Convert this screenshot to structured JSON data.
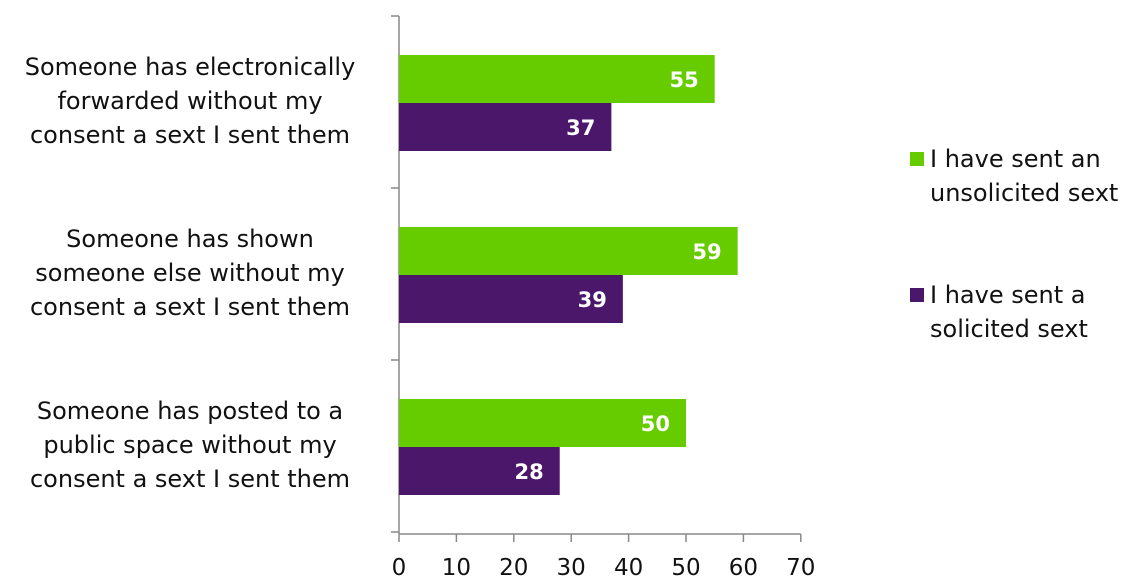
{
  "chart_data": {
    "type": "bar",
    "orientation": "horizontal",
    "categories": [
      "Someone has electronically forwarded without my consent a sext I sent them",
      "Someone has shown someone else without my consent a sext I sent them",
      "Someone has posted to a public space without my consent a sext I sent them"
    ],
    "category_lines": [
      [
        "Someone has electronically",
        "forwarded without my",
        "consent a sext I sent them"
      ],
      [
        "Someone has shown",
        "someone else without my",
        "consent a sext I sent them"
      ],
      [
        "Someone has posted to a",
        "public space without my",
        "consent a sext I sent them"
      ]
    ],
    "series": [
      {
        "name": "I have sent an unsolicited sext",
        "name_lines": [
          "I have sent an",
          "unsolicited sext"
        ],
        "color": "#66cc00",
        "values": [
          55,
          59,
          50
        ]
      },
      {
        "name": "I have sent a solicited sext",
        "name_lines": [
          "I have sent a",
          "solicited sext"
        ],
        "color": "#4b176b",
        "values": [
          37,
          39,
          28
        ]
      }
    ],
    "xlim": [
      0,
      70
    ],
    "x_ticks": [
      0,
      10,
      20,
      30,
      40,
      50,
      60,
      70
    ],
    "data_labels": true,
    "grid": false,
    "legend_position": "right",
    "title": "",
    "xlabel": "",
    "ylabel": ""
  }
}
